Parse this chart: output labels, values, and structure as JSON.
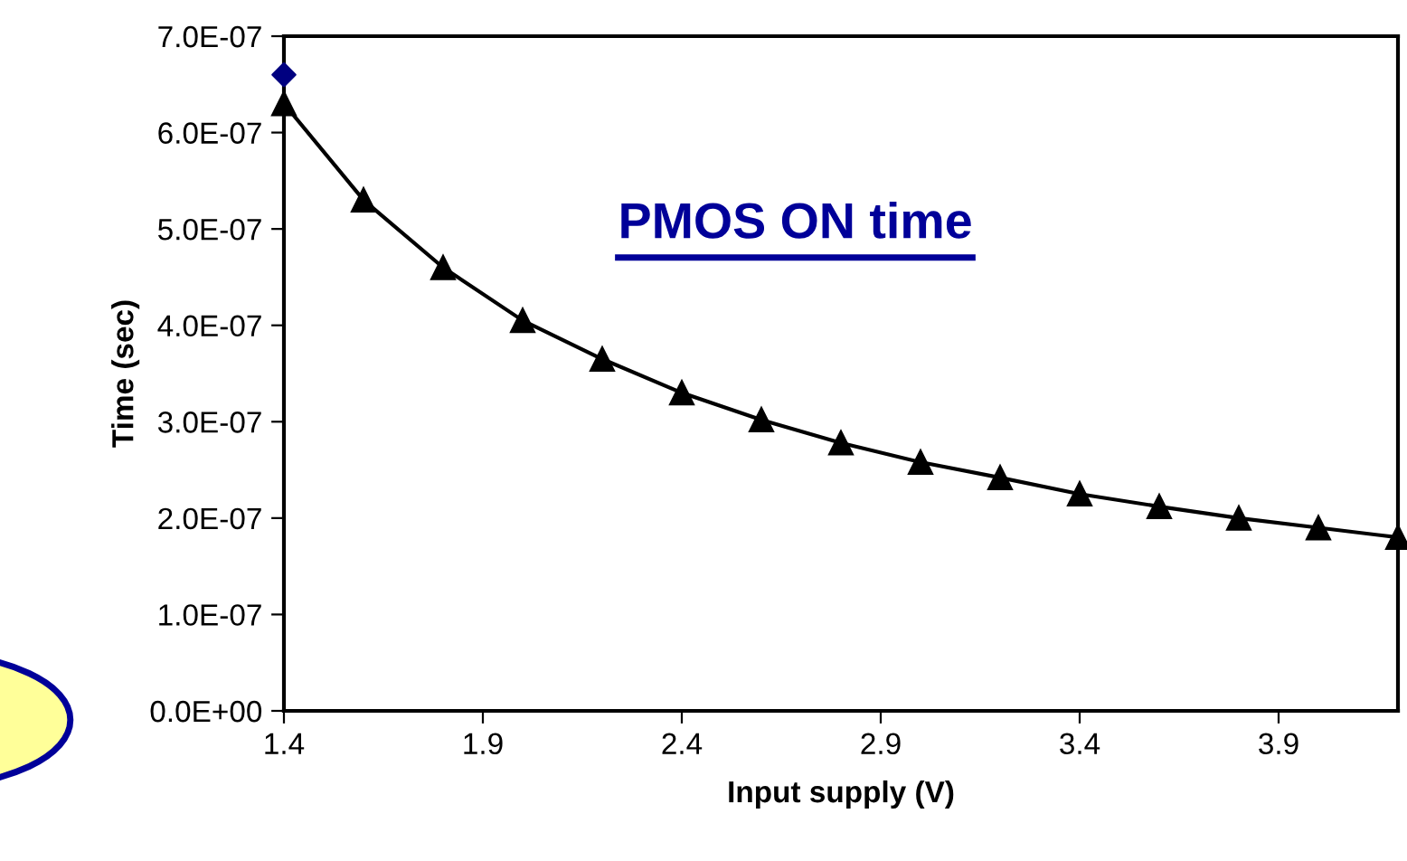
{
  "chart_data": {
    "type": "scatter",
    "xlabel": "Input supply (V)",
    "ylabel": "Time (sec)",
    "annotations": [
      "PMOS ON time"
    ],
    "series": [
      {
        "type": "line",
        "color": "#000000",
        "marker": "triangle",
        "x": [
          1.4,
          1.6,
          1.8,
          2.0,
          2.2,
          2.4,
          2.6,
          2.8,
          3.0,
          3.2,
          3.4,
          3.6,
          3.8,
          4.0,
          4.2
        ],
        "values": [
          6.3e-07,
          5.3e-07,
          4.6e-07,
          4.05e-07,
          3.65e-07,
          3.3e-07,
          3.02e-07,
          2.78e-07,
          2.58e-07,
          2.42e-07,
          2.25e-07,
          2.12e-07,
          2e-07,
          1.9e-07,
          1.8e-07
        ]
      },
      {
        "color": "#000080",
        "marker": "diamond",
        "x": [
          1.4
        ],
        "values": [
          6.6e-07
        ]
      }
    ],
    "xlim": [
      1.4,
      4.2
    ],
    "xticks": [
      1.4,
      1.9,
      2.4,
      2.9,
      3.4,
      3.9
    ],
    "ylim": [
      0,
      7e-07
    ],
    "yticks": [
      {
        "value": 0,
        "label": "0.0E+00"
      },
      {
        "value": 1e-07,
        "label": "1.0E-07"
      },
      {
        "value": 2e-07,
        "label": "2.0E-07"
      },
      {
        "value": 3e-07,
        "label": "3.0E-07"
      },
      {
        "value": 4e-07,
        "label": "4.0E-07"
      },
      {
        "value": 5e-07,
        "label": "5.0E-07"
      },
      {
        "value": 6e-07,
        "label": "6.0E-07"
      },
      {
        "value": 7e-07,
        "label": "7.0E-07"
      }
    ],
    "grid": false,
    "legend": false
  }
}
